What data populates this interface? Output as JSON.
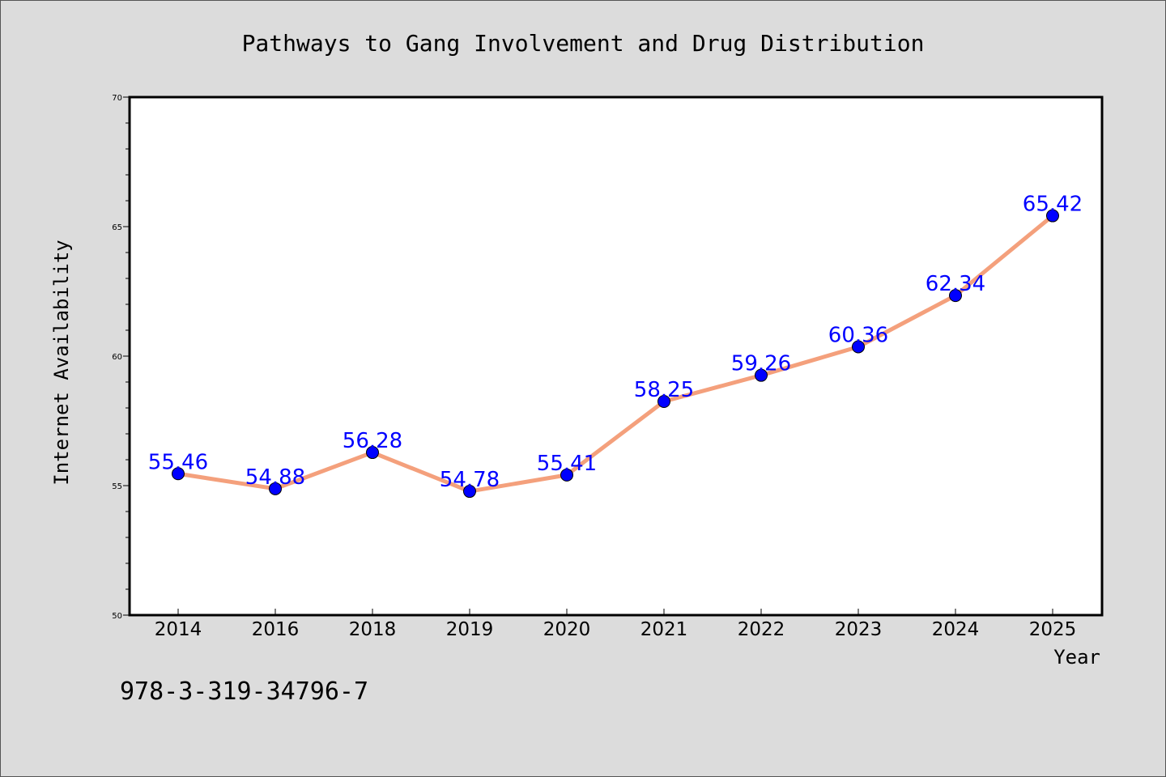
{
  "chart_data": {
    "type": "line",
    "title": "Pathways to Gang Involvement and Drug Distribution",
    "xlabel": "Year",
    "ylabel": "Internet Availability",
    "categories": [
      "2014",
      "2016",
      "2018",
      "2019",
      "2020",
      "2021",
      "2022",
      "2023",
      "2024",
      "2025"
    ],
    "series": [
      {
        "values": [
          55.46,
          54.88,
          56.28,
          54.78,
          55.41,
          58.25,
          59.26,
          60.36,
          62.34,
          65.42
        ]
      }
    ],
    "ylim": [
      50,
      70
    ],
    "yticks": [
      50,
      55,
      60,
      65,
      70
    ],
    "y_minor_step": 1,
    "grid": false,
    "legend": "none",
    "data_labels": true,
    "colors": {
      "line": "#f4a07c",
      "marker": "#0000ff",
      "data_label": "#0000ff",
      "plot_background": "#ffffff",
      "page_background": "#dcdcdc"
    }
  },
  "footer": {
    "isbn": "978-3-319-34796-7"
  }
}
